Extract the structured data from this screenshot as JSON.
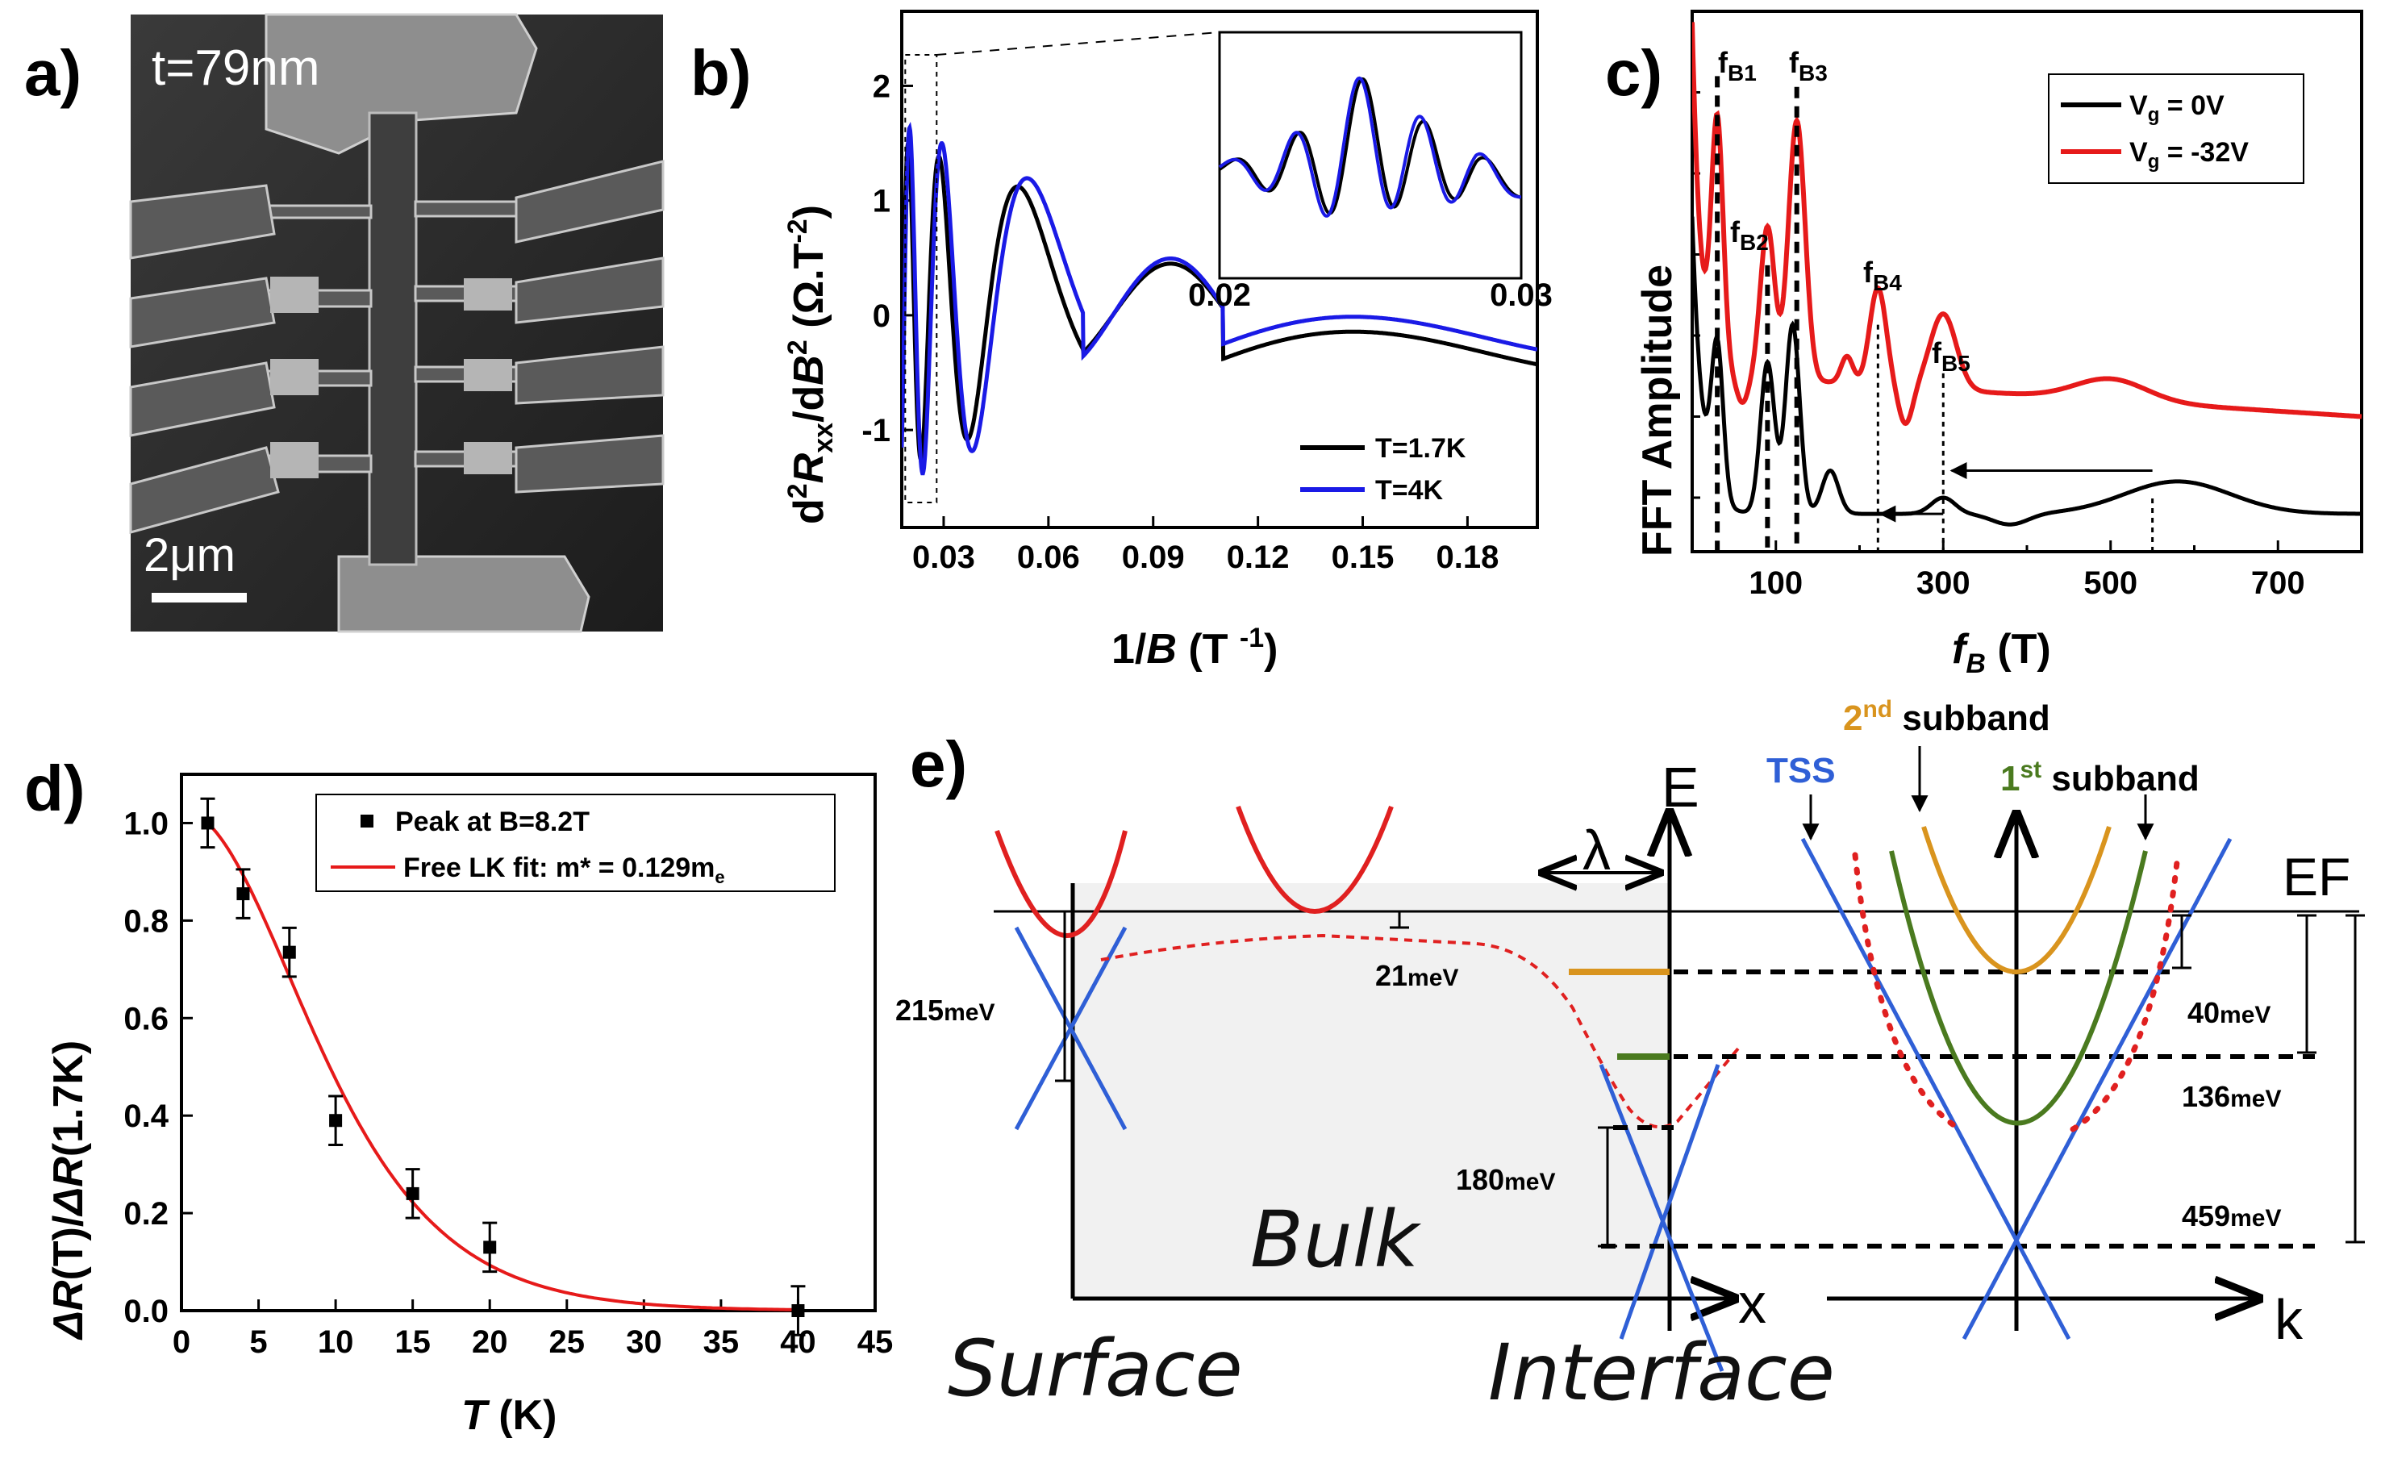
{
  "panels": {
    "a": {
      "label": "a)",
      "thickness": "t=79nm",
      "scalebar": "2μm"
    },
    "b": {
      "label": "b)"
    },
    "c": {
      "label": "c)"
    },
    "d": {
      "label": "d)"
    },
    "e": {
      "label": "e)"
    }
  },
  "chart_data": [
    {
      "id": "b",
      "type": "line",
      "title": "",
      "xlabel": "1/B (T⁻¹)",
      "ylabel": "d²Rxx/dB² (Ω.T⁻²)",
      "xlim": [
        0.018,
        0.2
      ],
      "ylim": [
        -1.85,
        2.65
      ],
      "xticks": [
        "0.03",
        "0.06",
        "0.09",
        "0.12",
        "0.15",
        "0.18"
      ],
      "yticks": [
        "-1",
        "0",
        "1",
        "2"
      ],
      "series": [
        {
          "name": "T=1.7K",
          "color": "#000000"
        },
        {
          "name": "T=4K",
          "color": "#1a1ae6"
        }
      ],
      "inset": {
        "xlim": [
          0.02,
          0.03
        ],
        "xticks": [
          "0.02",
          "0.03"
        ]
      },
      "legend": "bottom-right"
    },
    {
      "id": "c",
      "type": "line",
      "xlabel": "fB (T)",
      "ylabel": "FFT Amplitude",
      "xlim": [
        0,
        800
      ],
      "xticks": [
        "100",
        "300",
        "500",
        "700"
      ],
      "series": [
        {
          "name": "Vg = 0V",
          "color": "#000000"
        },
        {
          "name": "Vg = -32V",
          "color": "#e61a1a"
        }
      ],
      "peaks": [
        {
          "name": "fB1",
          "f": 30
        },
        {
          "name": "fB2",
          "f": 90
        },
        {
          "name": "fB3",
          "f": 125
        },
        {
          "name": "fB4",
          "f": 222
        },
        {
          "name": "fB5",
          "f": 300
        }
      ],
      "legend": "top-right"
    },
    {
      "id": "d",
      "type": "scatter",
      "xlabel": "T (K)",
      "ylabel": "ΔR(T)/ΔR(1.7K)",
      "xlim": [
        0,
        45
      ],
      "ylim": [
        0,
        1.1
      ],
      "xticks": [
        "0",
        "5",
        "10",
        "15",
        "20",
        "25",
        "30",
        "35",
        "40",
        "45"
      ],
      "yticks": [
        "0.0",
        "0.2",
        "0.4",
        "0.6",
        "0.8",
        "1.0"
      ],
      "points": [
        {
          "x": 1.7,
          "y": 1.0,
          "err": 0.05
        },
        {
          "x": 4,
          "y": 0.855,
          "err": 0.05
        },
        {
          "x": 7,
          "y": 0.735,
          "err": 0.05
        },
        {
          "x": 10,
          "y": 0.39,
          "err": 0.05
        },
        {
          "x": 15,
          "y": 0.24,
          "err": 0.05
        },
        {
          "x": 20,
          "y": 0.13,
          "err": 0.05
        },
        {
          "x": 40,
          "y": 0.0,
          "err": 0.05
        }
      ],
      "fit": {
        "name": "Free LK fit: m* = 0.129m",
        "sub": "e",
        "mstar": 0.129
      },
      "scatter_name": "Peak at B=8.2T",
      "legend": "top-right"
    }
  ],
  "diagram_e": {
    "labels": {
      "surface": "Surface",
      "bulk": "Bulk",
      "interface": "Interface",
      "E": "E",
      "x": "x",
      "k": "k",
      "lambda": "λ",
      "EF": "EF",
      "tss": "TSS",
      "sub1": "1st subband",
      "sub2": "2nd subband"
    },
    "energies": {
      "e215": "215",
      "e21": "21",
      "e180": "180",
      "e40": "40",
      "e136": "136",
      "e459": "459",
      "unit": "meV"
    }
  },
  "colors": {
    "black": "#000000",
    "blue": "#1a1ae6",
    "red": "#e61a1a",
    "tss": "#2f5fd6",
    "orange": "#d9941e",
    "green": "#4a7a1f",
    "bandred": "#e02020"
  }
}
